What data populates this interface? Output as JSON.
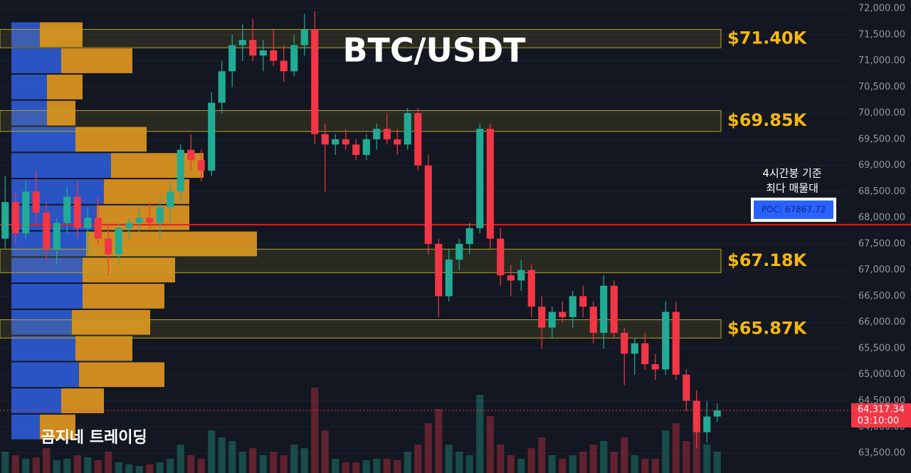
{
  "chart_data": {
    "type": "candlestick",
    "title": "BTC/USDT",
    "watermark": "곰지네 트레이딩",
    "annotation": [
      "4시간봉 기준",
      "최다 매물대"
    ],
    "poc": {
      "value": 67867.72,
      "label": "POC: 67867.72"
    },
    "last_price": {
      "value": 64317.34,
      "label": "64,317.34",
      "timer": "03:10:00"
    },
    "up_color": "#22ab94",
    "down_color": "#f23645",
    "grid": true,
    "ylim": [
      63120,
      72163
    ],
    "yticks": [
      {
        "value": 63500,
        "label": "63,500.00"
      },
      {
        "value": 64000,
        "label": "64,000.00"
      },
      {
        "value": 64500,
        "label": "64,500.00"
      },
      {
        "value": 65000,
        "label": "65,000.00"
      },
      {
        "value": 65500,
        "label": "65,500.00"
      },
      {
        "value": 66000,
        "label": "66,000.00"
      },
      {
        "value": 66500,
        "label": "66,500.00"
      },
      {
        "value": 67000,
        "label": "67,000.00"
      },
      {
        "value": 67500,
        "label": "67,500.00"
      },
      {
        "value": 68000,
        "label": "68,000.00"
      },
      {
        "value": 68500,
        "label": "68,500.00"
      },
      {
        "value": 69000,
        "label": "69,000.00"
      },
      {
        "value": 69500,
        "label": "69,500.00"
      },
      {
        "value": 70000,
        "label": "70,000.00"
      },
      {
        "value": 70500,
        "label": "70,500.00"
      },
      {
        "value": 71000,
        "label": "71,000.00"
      },
      {
        "value": 71500,
        "label": "71,500.00"
      },
      {
        "value": 72000,
        "label": "72,000.00"
      }
    ],
    "levels": [
      {
        "label": "$71.40K",
        "low": 71250,
        "high": 71600
      },
      {
        "label": "$69.85K",
        "low": 69650,
        "high": 70050
      },
      {
        "label": "$67.18K",
        "low": 66950,
        "high": 67400
      },
      {
        "label": "$65.87K",
        "low": 65700,
        "high": 66050
      }
    ],
    "open": [
      67600,
      68300,
      67700,
      68500,
      68100,
      67400,
      67900,
      68400,
      67800,
      68000,
      67600,
      67300,
      67800,
      67900,
      68000,
      67900,
      68200,
      68500,
      69300,
      69100,
      68900,
      70200,
      70800,
      71300,
      71400,
      71100,
      71200,
      71000,
      70800,
      71300,
      71600,
      69600,
      69400,
      69500,
      69400,
      69200,
      69500,
      69700,
      69500,
      69400,
      70000,
      69000,
      67500,
      66500,
      67200,
      67500,
      67800,
      69700,
      67600,
      66900,
      66800,
      67000,
      66300,
      65900,
      66200,
      66100,
      66500,
      66300,
      65800,
      66700,
      65800,
      65400,
      65600,
      65200,
      65100,
      66200,
      65000,
      64500,
      63900,
      64200
    ],
    "high": [
      68800,
      68500,
      68700,
      68900,
      68300,
      68000,
      68600,
      68700,
      68200,
      68400,
      67900,
      67900,
      68000,
      68200,
      68300,
      68400,
      68700,
      69400,
      69600,
      69300,
      70400,
      71000,
      71500,
      71700,
      71800,
      71400,
      71600,
      71300,
      71500,
      71900,
      71950,
      69800,
      69600,
      69700,
      69500,
      69600,
      69800,
      70000,
      69700,
      70100,
      70100,
      69200,
      67600,
      67400,
      67600,
      67900,
      69800,
      69800,
      67800,
      67100,
      67200,
      67100,
      66500,
      66300,
      66400,
      66600,
      66700,
      66400,
      66900,
      66800,
      65900,
      65700,
      65800,
      65400,
      66400,
      66400,
      65100,
      64700,
      64500,
      64450
    ],
    "low": [
      67400,
      67500,
      67600,
      67900,
      67200,
      67100,
      67700,
      67600,
      67300,
      67500,
      66900,
      67100,
      67600,
      67700,
      67800,
      67600,
      67900,
      68300,
      68900,
      68700,
      68800,
      70000,
      70500,
      71000,
      71000,
      70800,
      70900,
      70600,
      70700,
      71100,
      69400,
      68500,
      69200,
      69300,
      69100,
      69100,
      69300,
      69400,
      69200,
      69300,
      68900,
      67300,
      66100,
      66400,
      67000,
      67300,
      67700,
      67400,
      66700,
      66500,
      66600,
      66100,
      65500,
      65700,
      66000,
      65900,
      66100,
      65600,
      65500,
      65700,
      64800,
      65000,
      65100,
      64900,
      65000,
      64900,
      64300,
      63600,
      63700,
      64100
    ],
    "close": [
      68300,
      67700,
      68500,
      68100,
      67400,
      67900,
      68400,
      67800,
      68000,
      67600,
      67300,
      67800,
      67900,
      68000,
      67900,
      68200,
      68500,
      69300,
      69100,
      68900,
      70200,
      70800,
      71300,
      71400,
      71100,
      71200,
      71000,
      70800,
      71300,
      71600,
      69600,
      69400,
      69500,
      69400,
      69200,
      69500,
      69700,
      69500,
      69400,
      70000,
      69000,
      67500,
      66500,
      67200,
      67500,
      67800,
      69700,
      67600,
      66900,
      66800,
      67000,
      66300,
      65900,
      66200,
      66100,
      66500,
      66300,
      65800,
      66700,
      65800,
      65400,
      65600,
      65200,
      65100,
      66200,
      65000,
      64500,
      63900,
      64200,
      64317.34
    ],
    "volume": [
      30,
      25,
      20,
      22,
      35,
      18,
      20,
      25,
      22,
      18,
      30,
      15,
      12,
      10,
      12,
      15,
      20,
      40,
      25,
      20,
      60,
      50,
      45,
      30,
      35,
      25,
      30,
      25,
      40,
      35,
      120,
      60,
      20,
      15,
      15,
      18,
      20,
      20,
      18,
      30,
      40,
      70,
      90,
      40,
      30,
      25,
      110,
      80,
      40,
      25,
      20,
      35,
      50,
      25,
      20,
      25,
      30,
      40,
      45,
      30,
      50,
      25,
      20,
      20,
      60,
      70,
      45,
      80,
      40,
      30
    ],
    "profile": {
      "prices": [
        64000,
        64500,
        65000,
        65500,
        66000,
        66500,
        67000,
        67500,
        68000,
        68500,
        69000,
        69500,
        70000,
        70500,
        71000,
        71500
      ],
      "buy": [
        40,
        70,
        95,
        90,
        85,
        100,
        100,
        105,
        120,
        130,
        140,
        90,
        50,
        50,
        70,
        40
      ],
      "sell": [
        50,
        60,
        120,
        80,
        110,
        115,
        130,
        240,
        130,
        120,
        130,
        100,
        40,
        50,
        100,
        60
      ]
    }
  }
}
